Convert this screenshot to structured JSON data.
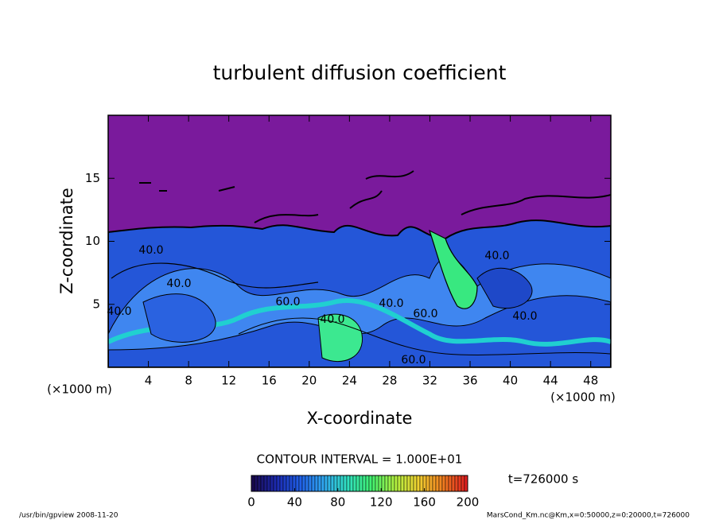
{
  "chart_data": {
    "type": "contour",
    "title": "turbulent diffusion coefficient",
    "xlabel": "X-coordinate",
    "ylabel": "Z-coordinate",
    "x_unit": "(×1000 m)",
    "y_unit": "(×1000 m)",
    "xlim": [
      0,
      50
    ],
    "xticks": [
      4,
      8,
      12,
      16,
      20,
      24,
      28,
      32,
      36,
      40,
      44,
      48
    ],
    "ylim": [
      0,
      20
    ],
    "yticks": [
      5,
      10,
      15
    ],
    "contour_labels": [
      "40.0",
      "40.0",
      "40.0",
      "60.0",
      "40.0",
      "60.0",
      "40.0",
      "40.0",
      "60.0",
      "40.0"
    ],
    "contour_interval": "CONTOUR INTERVAL = 1.000E+01",
    "colorbar": {
      "range": [
        0,
        200
      ],
      "ticks": [
        0,
        40,
        80,
        120,
        160,
        200
      ],
      "colors": [
        "#1a0a50",
        "#1c2ab0",
        "#2060e8",
        "#30a8f0",
        "#30e0c0",
        "#40f070",
        "#b0f040",
        "#f0d030",
        "#f08020",
        "#e02020"
      ]
    },
    "time_label": "t=726000 s",
    "footer_left": "/usr/bin/gpview  2008-11-20",
    "footer_right": "MarsCond_Km.nc@Km,x=0:50000,z=0:20000,t=726000"
  }
}
